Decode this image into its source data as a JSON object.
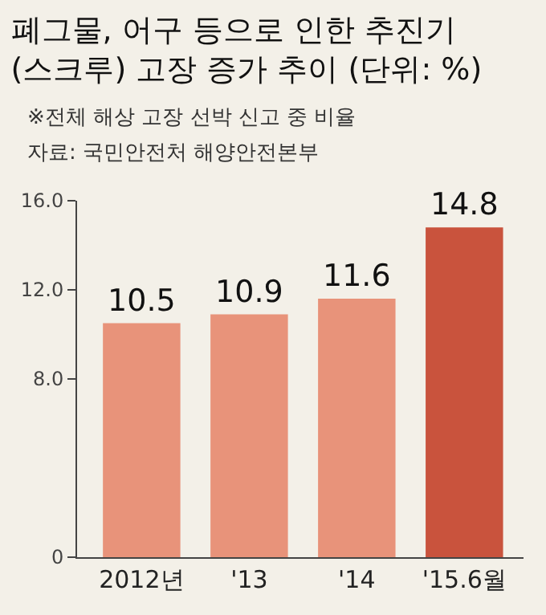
{
  "chart_data": {
    "type": "bar",
    "title": "폐그물, 어구 등으로 인한 추진기 (스크루) 고장 증가 추이 (단위: %)",
    "subtitle": "※전체 해상 고장 선박 신고 중 비율",
    "annotations": [
      "자료: 국민안전처 해양안전본부"
    ],
    "categories": [
      "2012년",
      "'13",
      "'14",
      "'15.6월"
    ],
    "values": [
      10.5,
      10.9,
      11.6,
      14.8
    ],
    "colors": [
      "#e8937a",
      "#e8937a",
      "#e8937a",
      "#c9533d"
    ],
    "ylim": [
      0,
      16
    ],
    "yticks": [
      0,
      {
        "value": 8,
        "label": "8.0"
      },
      {
        "value": 12,
        "label": "12.0"
      },
      {
        "value": 16,
        "label": "16.0"
      }
    ],
    "data_labels": true,
    "grid": false,
    "legend": false
  }
}
